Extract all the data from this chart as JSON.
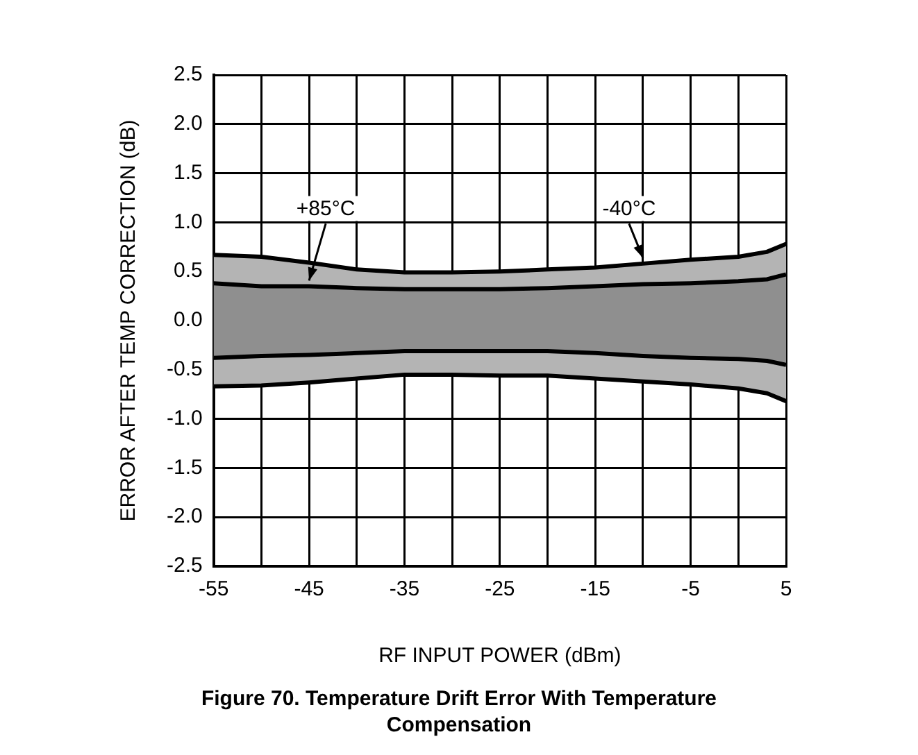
{
  "chart_data": {
    "type": "line",
    "title": "Figure 70. Temperature Drift Error With Temperature Compensation",
    "xlabel": "RF INPUT POWER (dBm)",
    "ylabel": "ERROR AFTER TEMP CORRECTION (dB)",
    "x": [
      -55,
      -50,
      -45,
      -40,
      -35,
      -30,
      -25,
      -20,
      -15,
      -10,
      -5,
      0,
      3,
      5
    ],
    "series": [
      {
        "name": "-40°C",
        "color": "#000000",
        "values": [
          0.67,
          0.65,
          0.59,
          0.52,
          0.49,
          0.49,
          0.5,
          0.52,
          0.54,
          0.58,
          0.62,
          0.65,
          0.7,
          0.78
        ],
        "upper": [
          0.67,
          0.65,
          0.59,
          0.52,
          0.49,
          0.49,
          0.5,
          0.52,
          0.54,
          0.58,
          0.62,
          0.65,
          0.7,
          0.78
        ],
        "lower": [
          -0.67,
          -0.66,
          -0.63,
          -0.59,
          -0.55,
          -0.55,
          -0.56,
          -0.56,
          -0.59,
          -0.62,
          -0.65,
          -0.69,
          -0.74,
          -0.82
        ]
      },
      {
        "name": "+85°C",
        "color": "#000000",
        "values": [
          0.38,
          0.35,
          0.35,
          0.33,
          0.32,
          0.32,
          0.32,
          0.33,
          0.35,
          0.37,
          0.38,
          0.4,
          0.42,
          0.47
        ],
        "upper": [
          0.38,
          0.35,
          0.35,
          0.33,
          0.32,
          0.32,
          0.32,
          0.33,
          0.35,
          0.37,
          0.38,
          0.4,
          0.42,
          0.47
        ],
        "lower": [
          -0.38,
          -0.36,
          -0.35,
          -0.33,
          -0.31,
          -0.31,
          -0.31,
          -0.31,
          -0.33,
          -0.36,
          -0.38,
          -0.39,
          -0.41,
          -0.45
        ]
      },
      {
        "color": "#000000",
        "values": [
          -0.38,
          -0.36,
          -0.35,
          -0.33,
          -0.31,
          -0.31,
          -0.31,
          -0.31,
          -0.33,
          -0.36,
          -0.38,
          -0.39,
          -0.41,
          -0.45
        ]
      },
      {
        "color": "#000000",
        "values": [
          -0.67,
          -0.66,
          -0.63,
          -0.59,
          -0.55,
          -0.55,
          -0.56,
          -0.56,
          -0.59,
          -0.62,
          -0.65,
          -0.69,
          -0.74,
          -0.82
        ]
      }
    ],
    "xlim": [
      -55,
      5
    ],
    "xticks": [
      -55,
      {
        "value": -50,
        "label": null
      },
      -45,
      {
        "value": -40,
        "label": null
      },
      -35,
      {
        "value": -30,
        "label": null
      },
      -25,
      {
        "value": -20,
        "label": null
      },
      -15,
      {
        "value": -10,
        "label": null
      },
      -5,
      {
        "value": 0,
        "label": null
      },
      5
    ],
    "ylim": [
      -2.5,
      2.5
    ],
    "yticks": [
      -2.5,
      {
        "value": -2,
        "label": "-2.0"
      },
      -1.5,
      {
        "value": -1,
        "label": "-1.0"
      },
      -0.5,
      {
        "value": 0,
        "label": "0.0"
      },
      0.5,
      {
        "value": 1,
        "label": "1.0"
      },
      1.5,
      {
        "value": 2,
        "label": "2.0"
      },
      2.5
    ],
    "grid": true,
    "legend": false,
    "marker": "none",
    "line_style": "solid"
  }
}
